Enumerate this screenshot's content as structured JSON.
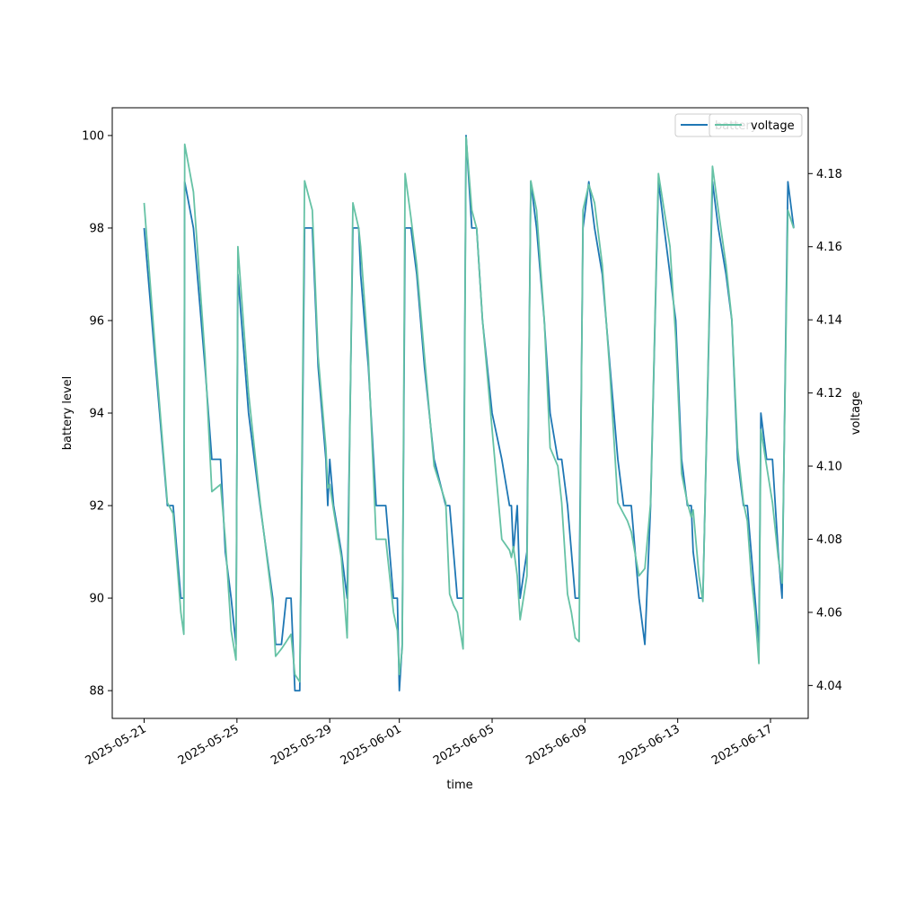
{
  "chart_data": {
    "type": "line",
    "xlabel": "time",
    "ylabel_left": "battery level",
    "ylabel_right": "voltage",
    "xlim": [
      "2025-05-19T15:00",
      "2025-06-18T15:00"
    ],
    "ylim_left": [
      87.4,
      100.6
    ],
    "ylim_right": [
      4.031,
      4.198
    ],
    "x_ticks": [
      "2025-05-21",
      "2025-05-25",
      "2025-05-29",
      "2025-06-01",
      "2025-06-05",
      "2025-06-09",
      "2025-06-13",
      "2025-06-17"
    ],
    "y_ticks_left": [
      "88",
      "90",
      "92",
      "94",
      "96",
      "98",
      "100"
    ],
    "y_ticks_right": [
      "4.04",
      "4.06",
      "4.08",
      "4.10",
      "4.12",
      "4.14",
      "4.16",
      "4.18"
    ],
    "legend_placement": "top-right",
    "legend_battery_text": "battery",
    "legend_voltage_text": "voltage",
    "series": [
      {
        "name": "battery",
        "axis": "left",
        "color": "#1f77b4",
        "points": [
          [
            "2025-05-21T00:00",
            98
          ],
          [
            "2025-05-21T12:00",
            95
          ],
          [
            "2025-05-22T00:00",
            92
          ],
          [
            "2025-05-22T06:00",
            92
          ],
          [
            "2025-05-22T14:00",
            90
          ],
          [
            "2025-05-22T17:00",
            90
          ],
          [
            "2025-05-22T18:00",
            99
          ],
          [
            "2025-05-23T03:00",
            98
          ],
          [
            "2025-05-23T15:00",
            95
          ],
          [
            "2025-05-23T22:00",
            93
          ],
          [
            "2025-05-24T07:00",
            93
          ],
          [
            "2025-05-24T12:00",
            91
          ],
          [
            "2025-05-24T18:00",
            90
          ],
          [
            "2025-05-24T23:00",
            89
          ],
          [
            "2025-05-25T01:00",
            97
          ],
          [
            "2025-05-25T12:00",
            94
          ],
          [
            "2025-05-26T00:00",
            92
          ],
          [
            "2025-05-26T13:00",
            90
          ],
          [
            "2025-05-26T16:00",
            89
          ],
          [
            "2025-05-26T22:00",
            89
          ],
          [
            "2025-05-27T03:00",
            90
          ],
          [
            "2025-05-27T08:00",
            90
          ],
          [
            "2025-05-27T12:00",
            88
          ],
          [
            "2025-05-27T17:00",
            88
          ],
          [
            "2025-05-27T22:00",
            98
          ],
          [
            "2025-05-28T06:00",
            98
          ],
          [
            "2025-05-28T12:00",
            95
          ],
          [
            "2025-05-28T20:00",
            93
          ],
          [
            "2025-05-28T22:00",
            92
          ],
          [
            "2025-05-29T00:00",
            93
          ],
          [
            "2025-05-29T04:00",
            92
          ],
          [
            "2025-05-29T12:00",
            91
          ],
          [
            "2025-05-29T18:00",
            90
          ],
          [
            "2025-05-30T00:00",
            98
          ],
          [
            "2025-05-30T06:00",
            98
          ],
          [
            "2025-05-30T08:00",
            97
          ],
          [
            "2025-05-30T16:00",
            95
          ],
          [
            "2025-05-31T00:00",
            92
          ],
          [
            "2025-05-31T10:00",
            92
          ],
          [
            "2025-05-31T18:00",
            90
          ],
          [
            "2025-05-31T22:00",
            90
          ],
          [
            "2025-06-01T00:00",
            88
          ],
          [
            "2025-06-01T03:00",
            89
          ],
          [
            "2025-06-01T06:00",
            98
          ],
          [
            "2025-06-01T12:00",
            98
          ],
          [
            "2025-06-01T18:00",
            97
          ],
          [
            "2025-06-02T02:00",
            95
          ],
          [
            "2025-06-02T12:00",
            93
          ],
          [
            "2025-06-03T00:00",
            92
          ],
          [
            "2025-06-03T04:00",
            92
          ],
          [
            "2025-06-03T08:00",
            91
          ],
          [
            "2025-06-03T12:00",
            90
          ],
          [
            "2025-06-03T18:00",
            90
          ],
          [
            "2025-06-03T21:00",
            100
          ],
          [
            "2025-06-04T03:00",
            98
          ],
          [
            "2025-06-04T08:00",
            98
          ],
          [
            "2025-06-04T14:00",
            96
          ],
          [
            "2025-06-05T00:00",
            94
          ],
          [
            "2025-06-05T10:00",
            93
          ],
          [
            "2025-06-05T18:00",
            92
          ],
          [
            "2025-06-05T20:00",
            92
          ],
          [
            "2025-06-05T22:00",
            91
          ],
          [
            "2025-06-06T02:00",
            92
          ],
          [
            "2025-06-06T05:00",
            90
          ],
          [
            "2025-06-06T12:00",
            91
          ],
          [
            "2025-06-06T16:00",
            99
          ],
          [
            "2025-06-06T22:00",
            98
          ],
          [
            "2025-06-07T06:00",
            96
          ],
          [
            "2025-06-07T12:00",
            94
          ],
          [
            "2025-06-07T20:00",
            93
          ],
          [
            "2025-06-08T00:00",
            93
          ],
          [
            "2025-06-08T06:00",
            92
          ],
          [
            "2025-06-08T10:00",
            91
          ],
          [
            "2025-06-08T14:00",
            90
          ],
          [
            "2025-06-08T18:00",
            90
          ],
          [
            "2025-06-08T22:00",
            98
          ],
          [
            "2025-06-09T04:00",
            99
          ],
          [
            "2025-06-09T10:00",
            98
          ],
          [
            "2025-06-09T18:00",
            97
          ],
          [
            "2025-06-10T02:00",
            95
          ],
          [
            "2025-06-10T10:00",
            93
          ],
          [
            "2025-06-10T16:00",
            92
          ],
          [
            "2025-06-10T20:00",
            92
          ],
          [
            "2025-06-11T00:00",
            92
          ],
          [
            "2025-06-11T08:00",
            90
          ],
          [
            "2025-06-11T14:00",
            89
          ],
          [
            "2025-06-11T20:00",
            92
          ],
          [
            "2025-06-12T04:00",
            99
          ],
          [
            "2025-06-12T10:00",
            98
          ],
          [
            "2025-06-12T16:00",
            97
          ],
          [
            "2025-06-12T22:00",
            96
          ],
          [
            "2025-06-13T04:00",
            93
          ],
          [
            "2025-06-13T10:00",
            92
          ],
          [
            "2025-06-13T14:00",
            92
          ],
          [
            "2025-06-13T16:00",
            91
          ],
          [
            "2025-06-13T22:00",
            90
          ],
          [
            "2025-06-14T02:00",
            90
          ],
          [
            "2025-06-14T12:00",
            99
          ],
          [
            "2025-06-14T18:00",
            98
          ],
          [
            "2025-06-15T02:00",
            97
          ],
          [
            "2025-06-15T08:00",
            96
          ],
          [
            "2025-06-15T14:00",
            93
          ],
          [
            "2025-06-15T20:00",
            92
          ],
          [
            "2025-06-16T00:00",
            92
          ],
          [
            "2025-06-16T04:00",
            91
          ],
          [
            "2025-06-16T08:00",
            90
          ],
          [
            "2025-06-16T12:00",
            89
          ],
          [
            "2025-06-16T14:00",
            94
          ],
          [
            "2025-06-16T20:00",
            93
          ],
          [
            "2025-06-17T02:00",
            93
          ],
          [
            "2025-06-17T08:00",
            91
          ],
          [
            "2025-06-17T12:00",
            90
          ],
          [
            "2025-06-17T18:00",
            99
          ],
          [
            "2025-06-18T00:00",
            98
          ]
        ]
      },
      {
        "name": "voltage",
        "axis": "right",
        "color": "#66c2a5",
        "points": [
          [
            "2025-05-21T00:00",
            4.172
          ],
          [
            "2025-05-21T12:00",
            4.13
          ],
          [
            "2025-05-22T00:00",
            4.09
          ],
          [
            "2025-05-22T06:00",
            4.087
          ],
          [
            "2025-05-22T14:00",
            4.06
          ],
          [
            "2025-05-22T17:00",
            4.054
          ],
          [
            "2025-05-22T18:00",
            4.188
          ],
          [
            "2025-05-23T03:00",
            4.175
          ],
          [
            "2025-05-23T15:00",
            4.13
          ],
          [
            "2025-05-23T22:00",
            4.093
          ],
          [
            "2025-05-24T07:00",
            4.095
          ],
          [
            "2025-05-24T12:00",
            4.08
          ],
          [
            "2025-05-24T18:00",
            4.055
          ],
          [
            "2025-05-24T23:00",
            4.047
          ],
          [
            "2025-05-25T01:00",
            4.16
          ],
          [
            "2025-05-25T12:00",
            4.12
          ],
          [
            "2025-05-26T00:00",
            4.09
          ],
          [
            "2025-05-26T13:00",
            4.062
          ],
          [
            "2025-05-26T16:00",
            4.048
          ],
          [
            "2025-05-26T22:00",
            4.05
          ],
          [
            "2025-05-27T03:00",
            4.052
          ],
          [
            "2025-05-27T08:00",
            4.054
          ],
          [
            "2025-05-27T12:00",
            4.043
          ],
          [
            "2025-05-27T17:00",
            4.041
          ],
          [
            "2025-05-27T22:00",
            4.178
          ],
          [
            "2025-05-28T06:00",
            4.17
          ],
          [
            "2025-05-28T12:00",
            4.13
          ],
          [
            "2025-05-28T20:00",
            4.105
          ],
          [
            "2025-05-28T22:00",
            4.094
          ],
          [
            "2025-05-29T00:00",
            4.095
          ],
          [
            "2025-05-29T04:00",
            4.088
          ],
          [
            "2025-05-29T12:00",
            4.075
          ],
          [
            "2025-05-29T18:00",
            4.053
          ],
          [
            "2025-05-30T00:00",
            4.172
          ],
          [
            "2025-05-30T06:00",
            4.165
          ],
          [
            "2025-05-30T08:00",
            4.16
          ],
          [
            "2025-05-30T16:00",
            4.13
          ],
          [
            "2025-05-31T00:00",
            4.08
          ],
          [
            "2025-05-31T10:00",
            4.08
          ],
          [
            "2025-05-31T18:00",
            4.06
          ],
          [
            "2025-05-31T22:00",
            4.055
          ],
          [
            "2025-06-01T00:00",
            4.043
          ],
          [
            "2025-06-01T03:00",
            4.05
          ],
          [
            "2025-06-01T06:00",
            4.18
          ],
          [
            "2025-06-01T12:00",
            4.168
          ],
          [
            "2025-06-01T18:00",
            4.155
          ],
          [
            "2025-06-02T02:00",
            4.13
          ],
          [
            "2025-06-02T12:00",
            4.1
          ],
          [
            "2025-06-03T00:00",
            4.09
          ],
          [
            "2025-06-03T04:00",
            4.065
          ],
          [
            "2025-06-03T08:00",
            4.062
          ],
          [
            "2025-06-03T12:00",
            4.06
          ],
          [
            "2025-06-03T18:00",
            4.05
          ],
          [
            "2025-06-03T21:00",
            4.19
          ],
          [
            "2025-06-04T03:00",
            4.17
          ],
          [
            "2025-06-04T08:00",
            4.165
          ],
          [
            "2025-06-04T14:00",
            4.14
          ],
          [
            "2025-06-05T00:00",
            4.11
          ],
          [
            "2025-06-05T10:00",
            4.08
          ],
          [
            "2025-06-05T18:00",
            4.077
          ],
          [
            "2025-06-05T20:00",
            4.075
          ],
          [
            "2025-06-05T22:00",
            4.078
          ],
          [
            "2025-06-06T02:00",
            4.07
          ],
          [
            "2025-06-06T05:00",
            4.058
          ],
          [
            "2025-06-06T12:00",
            4.07
          ],
          [
            "2025-06-06T16:00",
            4.178
          ],
          [
            "2025-06-06T22:00",
            4.17
          ],
          [
            "2025-06-07T06:00",
            4.14
          ],
          [
            "2025-06-07T12:00",
            4.105
          ],
          [
            "2025-06-07T20:00",
            4.1
          ],
          [
            "2025-06-08T00:00",
            4.09
          ],
          [
            "2025-06-08T06:00",
            4.065
          ],
          [
            "2025-06-08T10:00",
            4.06
          ],
          [
            "2025-06-08T14:00",
            4.053
          ],
          [
            "2025-06-08T18:00",
            4.052
          ],
          [
            "2025-06-08T22:00",
            4.17
          ],
          [
            "2025-06-09T04:00",
            4.177
          ],
          [
            "2025-06-09T10:00",
            4.172
          ],
          [
            "2025-06-09T18:00",
            4.155
          ],
          [
            "2025-06-10T02:00",
            4.125
          ],
          [
            "2025-06-10T10:00",
            4.09
          ],
          [
            "2025-06-10T16:00",
            4.087
          ],
          [
            "2025-06-10T20:00",
            4.085
          ],
          [
            "2025-06-11T00:00",
            4.082
          ],
          [
            "2025-06-11T08:00",
            4.07
          ],
          [
            "2025-06-11T14:00",
            4.072
          ],
          [
            "2025-06-11T20:00",
            4.09
          ],
          [
            "2025-06-12T04:00",
            4.18
          ],
          [
            "2025-06-12T10:00",
            4.17
          ],
          [
            "2025-06-12T16:00",
            4.16
          ],
          [
            "2025-06-12T22:00",
            4.135
          ],
          [
            "2025-06-13T04:00",
            4.098
          ],
          [
            "2025-06-13T10:00",
            4.09
          ],
          [
            "2025-06-13T14:00",
            4.086
          ],
          [
            "2025-06-13T16:00",
            4.088
          ],
          [
            "2025-06-13T22:00",
            4.07
          ],
          [
            "2025-06-14T02:00",
            4.063
          ],
          [
            "2025-06-14T12:00",
            4.182
          ],
          [
            "2025-06-14T18:00",
            4.17
          ],
          [
            "2025-06-15T02:00",
            4.155
          ],
          [
            "2025-06-15T08:00",
            4.14
          ],
          [
            "2025-06-15T14:00",
            4.105
          ],
          [
            "2025-06-15T20:00",
            4.09
          ],
          [
            "2025-06-16T00:00",
            4.085
          ],
          [
            "2025-06-16T04:00",
            4.07
          ],
          [
            "2025-06-16T08:00",
            4.06
          ],
          [
            "2025-06-16T12:00",
            4.046
          ],
          [
            "2025-06-16T14:00",
            4.11
          ],
          [
            "2025-06-16T20:00",
            4.1
          ],
          [
            "2025-06-17T02:00",
            4.09
          ],
          [
            "2025-06-17T08:00",
            4.075
          ],
          [
            "2025-06-17T12:00",
            4.068
          ],
          [
            "2025-06-17T18:00",
            4.17
          ],
          [
            "2025-06-18T00:00",
            4.165
          ]
        ]
      }
    ]
  }
}
